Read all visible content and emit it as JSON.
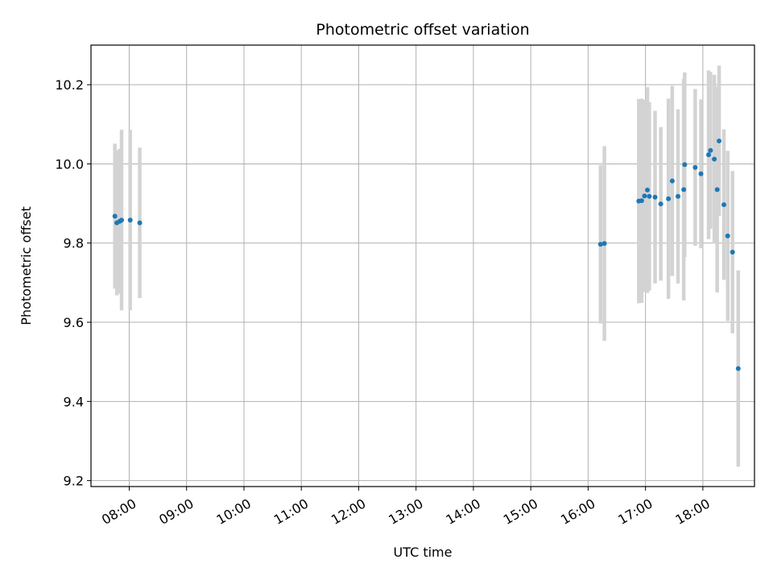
{
  "chart_data": {
    "type": "scatter",
    "title": "Photometric offset variation",
    "xlabel": "UTC time",
    "ylabel": "Photometric offset",
    "x_is_time": true,
    "xlim": [
      "07:20",
      "18:54"
    ],
    "ylim": [
      9.185,
      10.3
    ],
    "grid": true,
    "x_ticks": [
      "08:00",
      "09:00",
      "10:00",
      "11:00",
      "12:00",
      "13:00",
      "14:00",
      "15:00",
      "16:00",
      "17:00",
      "18:00"
    ],
    "y_ticks": [
      9.2,
      9.4,
      9.6,
      9.8,
      10.0,
      10.2
    ],
    "y_tick_labels": [
      "9.2",
      "9.4",
      "9.6",
      "9.8",
      "10.0",
      "10.2"
    ],
    "point_color": "#1f77b4",
    "errorbar_color": "#d3d3d3",
    "points": [
      {
        "x": "07:45",
        "y": 9.868,
        "err": 0.183
      },
      {
        "x": "07:47",
        "y": 9.851,
        "err": 0.183
      },
      {
        "x": "07:50",
        "y": 9.855,
        "err": 0.183
      },
      {
        "x": "07:52",
        "y": 9.858,
        "err": 0.228
      },
      {
        "x": "08:01",
        "y": 9.858,
        "err": 0.228
      },
      {
        "x": "08:11",
        "y": 9.851,
        "err": 0.19
      },
      {
        "x": "16:13",
        "y": 9.797,
        "err": 0.2
      },
      {
        "x": "16:17",
        "y": 9.799,
        "err": 0.246
      },
      {
        "x": "16:53",
        "y": 9.906,
        "err": 0.258
      },
      {
        "x": "16:56",
        "y": 9.907,
        "err": 0.258
      },
      {
        "x": "16:59",
        "y": 9.919,
        "err": 0.243
      },
      {
        "x": "17:02",
        "y": 9.934,
        "err": 0.26
      },
      {
        "x": "17:04",
        "y": 9.918,
        "err": 0.238
      },
      {
        "x": "17:10",
        "y": 9.916,
        "err": 0.218
      },
      {
        "x": "17:16",
        "y": 9.899,
        "err": 0.194
      },
      {
        "x": "17:24",
        "y": 9.912,
        "err": 0.253
      },
      {
        "x": "17:28",
        "y": 9.957,
        "err": 0.24
      },
      {
        "x": "17:34",
        "y": 9.918,
        "err": 0.22
      },
      {
        "x": "17:40",
        "y": 9.935,
        "err": 0.28
      },
      {
        "x": "17:41",
        "y": 9.998,
        "err": 0.233
      },
      {
        "x": "17:52",
        "y": 9.991,
        "err": 0.198
      },
      {
        "x": "17:58",
        "y": 9.975,
        "err": 0.188
      },
      {
        "x": "18:06",
        "y": 10.023,
        "err": 0.213
      },
      {
        "x": "18:08",
        "y": 10.034,
        "err": 0.198
      },
      {
        "x": "18:12",
        "y": 10.012,
        "err": 0.213
      },
      {
        "x": "18:15",
        "y": 9.935,
        "err": 0.26
      },
      {
        "x": "18:17",
        "y": 10.058,
        "err": 0.19
      },
      {
        "x": "18:22",
        "y": 9.897,
        "err": 0.19
      },
      {
        "x": "18:26",
        "y": 9.818,
        "err": 0.215
      },
      {
        "x": "18:31",
        "y": 9.777,
        "err": 0.205
      },
      {
        "x": "18:37",
        "y": 9.483,
        "err": 0.248
      }
    ]
  }
}
